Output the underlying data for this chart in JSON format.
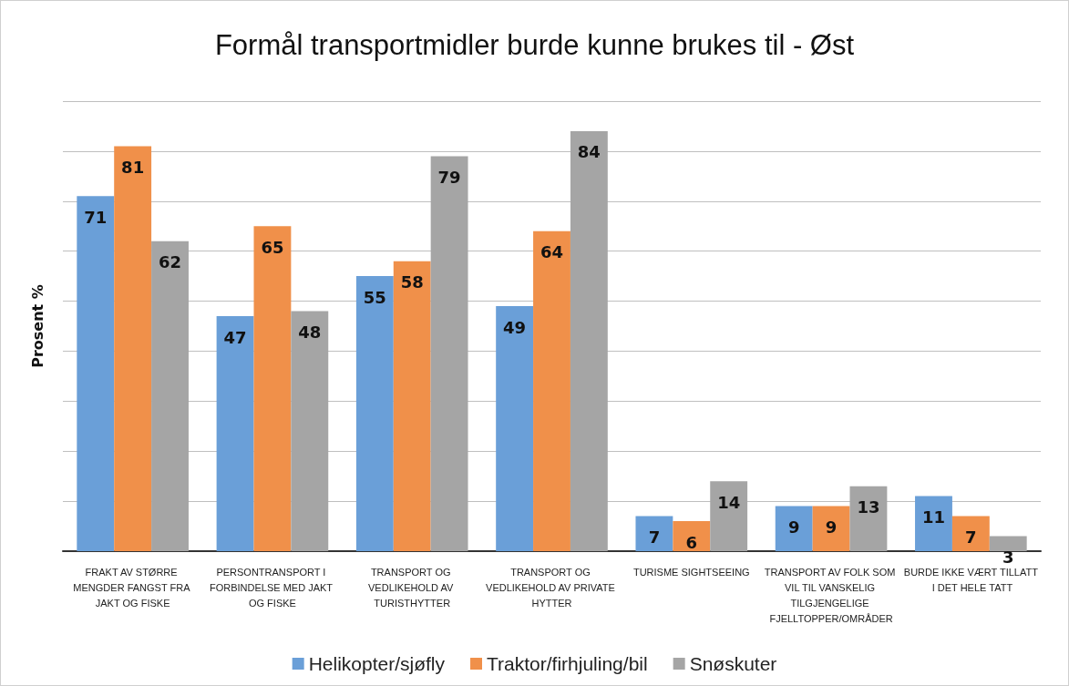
{
  "chart_data": {
    "type": "bar",
    "title": "Formål transportmidler burde kunne brukes til - Øst",
    "ylabel": "Prosent %",
    "categories": [
      "FRAKT AV STØRRE MENGDER FANGST FRA JAKT OG FISKE",
      "PERSONTRANSPORT I FORBINDELSE MED JAKT OG FISKE",
      "TRANSPORT OG VEDLIKEHOLD AV TURISTHYTTER",
      "TRANSPORT OG VEDLIKEHOLD AV PRIVATE HYTTER",
      "TURISME SIGHTSEEING",
      "TRANSPORT AV FOLK SOM VIL TIL VANSKELIG TILGJENGELIGE FJELLTOPPER/OMRÅDER",
      "BURDE IKKE VÆRT TILLATT I DET HELE TATT"
    ],
    "series": [
      {
        "name": "Helikopter/sjøfly",
        "color": "#6a9fd8",
        "values": [
          71,
          47,
          55,
          49,
          7,
          9,
          11
        ]
      },
      {
        "name": "Traktor/firhjuling/bil",
        "color": "#f0904a",
        "values": [
          81,
          65,
          58,
          64,
          6,
          9,
          7
        ]
      },
      {
        "name": "Snøskuter",
        "color": "#a5a5a5",
        "values": [
          62,
          48,
          79,
          84,
          14,
          13,
          3
        ]
      }
    ],
    "ylim": [
      0,
      90
    ],
    "yticks": [
      0,
      10,
      20,
      30,
      40,
      50,
      60,
      70,
      80,
      90
    ],
    "tick_labels": "x",
    "grid": "y",
    "legend": "bottom",
    "data_labels": true
  }
}
